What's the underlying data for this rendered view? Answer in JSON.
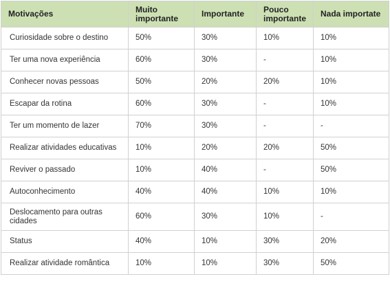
{
  "table": {
    "headers": [
      "Motivações",
      "Muito importante",
      "Importante",
      "Pouco importante",
      "Nada importate"
    ],
    "rows": [
      [
        "Curiosidade sobre o destino",
        "50%",
        "30%",
        "10%",
        "10%"
      ],
      [
        "Ter uma nova experiência",
        "60%",
        "30%",
        "-",
        "10%"
      ],
      [
        "Conhecer novas pessoas",
        "50%",
        "20%",
        "20%",
        "10%"
      ],
      [
        "Escapar da rotina",
        "60%",
        "30%",
        "-",
        "10%"
      ],
      [
        "Ter um momento de lazer",
        "70%",
        "30%",
        "-",
        "-"
      ],
      [
        "Realizar atividades educativas",
        "10%",
        "20%",
        "20%",
        "50%"
      ],
      [
        "Reviver o passado",
        "10%",
        "40%",
        "-",
        "50%"
      ],
      [
        "Autoconhecimento",
        "40%",
        "40%",
        "10%",
        "10%"
      ],
      [
        "Deslocamento para outras cidades",
        "60%",
        "30%",
        "10%",
        "-"
      ],
      [
        "Status",
        "40%",
        "10%",
        "30%",
        "20%"
      ],
      [
        "Realizar atividade romântica",
        "10%",
        "10%",
        "30%",
        "50%"
      ]
    ]
  },
  "colors": {
    "header_bg": "#cde0b4",
    "border": "#d0d0d0",
    "text": "#333333"
  }
}
